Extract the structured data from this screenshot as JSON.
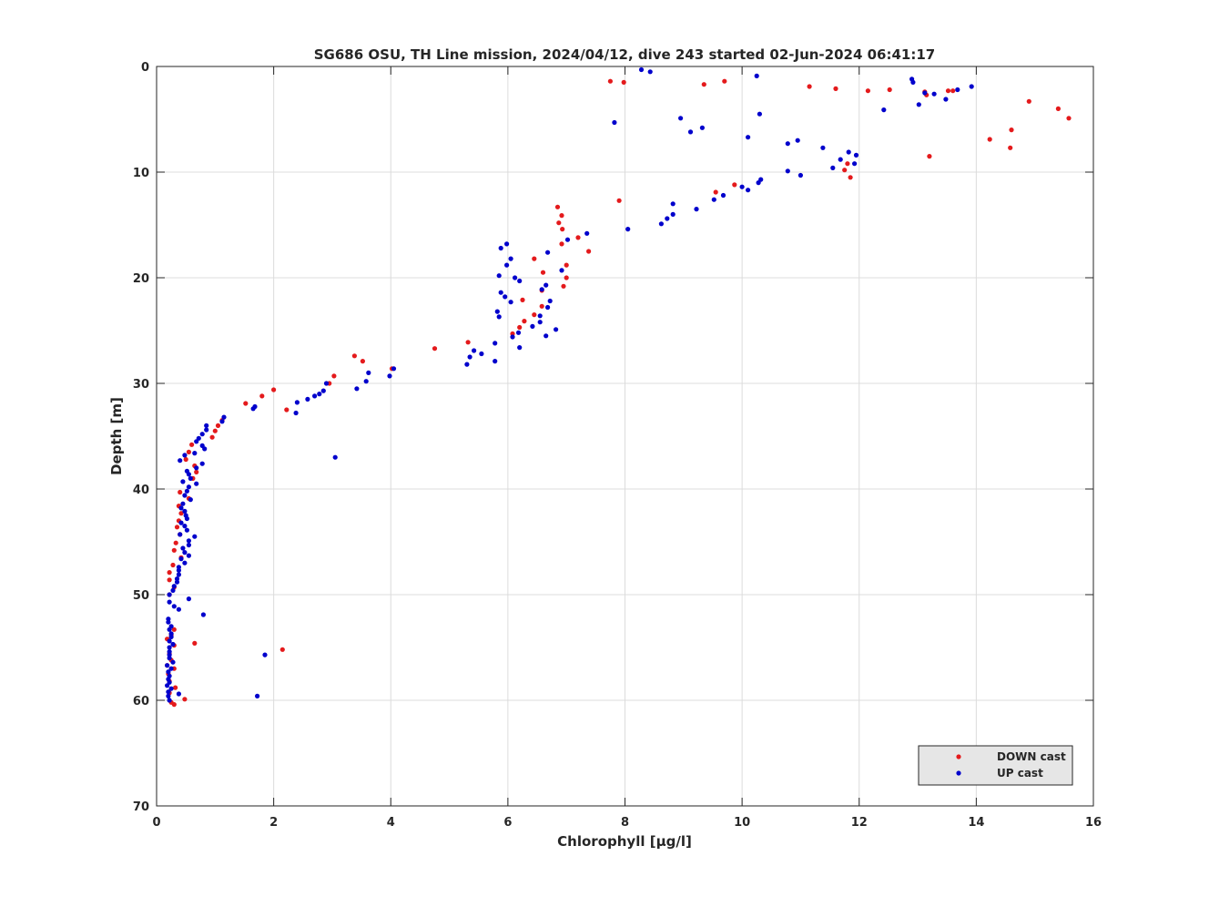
{
  "chart_data": {
    "type": "scatter",
    "title": "SG686 OSU, TH Line mission, 2024/04/12, dive 243 started 02-Jun-2024 06:41:17",
    "xlabel": "Chlorophyll [μg/l]",
    "ylabel": "Depth [m]",
    "xlim": [
      0,
      16
    ],
    "ylim": [
      0,
      70
    ],
    "y_reversed": true,
    "xticks": [
      "0",
      "2",
      "4",
      "6",
      "8",
      "10",
      "12",
      "14",
      "16"
    ],
    "yticks": [
      "0",
      "10",
      "20",
      "30",
      "40",
      "50",
      "60",
      "70"
    ],
    "grid": true,
    "legend_position": "bottom-right",
    "series": [
      {
        "name": "DOWN cast",
        "color": "#e41a1c",
        "points": [
          [
            7.75,
            1.4
          ],
          [
            7.98,
            1.5
          ],
          [
            9.35,
            1.7
          ],
          [
            9.7,
            1.4
          ],
          [
            11.15,
            1.9
          ],
          [
            11.6,
            2.1
          ],
          [
            12.15,
            2.3
          ],
          [
            12.52,
            2.2
          ],
          [
            13.12,
            2.4
          ],
          [
            13.15,
            2.7
          ],
          [
            13.52,
            2.3
          ],
          [
            13.6,
            2.3
          ],
          [
            14.9,
            3.3
          ],
          [
            15.4,
            4.0
          ],
          [
            15.58,
            4.9
          ],
          [
            14.6,
            6.0
          ],
          [
            14.23,
            6.9
          ],
          [
            14.58,
            7.7
          ],
          [
            13.2,
            8.5
          ],
          [
            11.8,
            9.2
          ],
          [
            11.75,
            9.8
          ],
          [
            11.85,
            10.5
          ],
          [
            9.87,
            11.2
          ],
          [
            9.55,
            11.9
          ],
          [
            7.9,
            12.7
          ],
          [
            6.85,
            13.3
          ],
          [
            6.92,
            14.1
          ],
          [
            6.87,
            14.8
          ],
          [
            6.93,
            15.4
          ],
          [
            7.2,
            16.2
          ],
          [
            6.92,
            16.8
          ],
          [
            7.38,
            17.5
          ],
          [
            6.45,
            18.2
          ],
          [
            7.0,
            18.8
          ],
          [
            6.6,
            19.5
          ],
          [
            7.0,
            20.0
          ],
          [
            6.95,
            20.8
          ],
          [
            6.58,
            21.2
          ],
          [
            6.25,
            22.1
          ],
          [
            6.58,
            22.7
          ],
          [
            6.45,
            23.5
          ],
          [
            6.28,
            24.1
          ],
          [
            6.2,
            24.7
          ],
          [
            6.08,
            25.3
          ],
          [
            5.32,
            26.1
          ],
          [
            4.75,
            26.7
          ],
          [
            3.38,
            27.4
          ],
          [
            3.52,
            27.9
          ],
          [
            4.02,
            28.6
          ],
          [
            3.03,
            29.3
          ],
          [
            2.95,
            30.0
          ],
          [
            2.0,
            30.6
          ],
          [
            1.8,
            31.2
          ],
          [
            1.52,
            31.9
          ],
          [
            2.22,
            32.5
          ],
          [
            1.12,
            33.5
          ],
          [
            1.05,
            34.0
          ],
          [
            1.0,
            34.5
          ],
          [
            0.95,
            35.1
          ],
          [
            0.6,
            35.8
          ],
          [
            0.55,
            36.5
          ],
          [
            0.5,
            37.2
          ],
          [
            0.65,
            37.8
          ],
          [
            0.68,
            38.4
          ],
          [
            0.62,
            39.0
          ],
          [
            0.4,
            40.3
          ],
          [
            0.55,
            40.9
          ],
          [
            0.38,
            41.6
          ],
          [
            0.42,
            42.3
          ],
          [
            0.38,
            43.0
          ],
          [
            0.35,
            43.6
          ],
          [
            0.4,
            44.3
          ],
          [
            0.33,
            45.1
          ],
          [
            0.3,
            45.8
          ],
          [
            0.42,
            46.5
          ],
          [
            0.28,
            47.2
          ],
          [
            0.22,
            47.9
          ],
          [
            0.22,
            48.6
          ],
          [
            0.3,
            49.3
          ],
          [
            0.22,
            50.0
          ],
          [
            0.3,
            53.3
          ],
          [
            0.25,
            53.8
          ],
          [
            0.18,
            54.2
          ],
          [
            0.3,
            54.8
          ],
          [
            0.65,
            54.6
          ],
          [
            0.22,
            55.6
          ],
          [
            0.25,
            56.2
          ],
          [
            0.18,
            56.7
          ],
          [
            0.3,
            57.0
          ],
          [
            0.2,
            57.5
          ],
          [
            0.22,
            58.2
          ],
          [
            0.32,
            58.8
          ],
          [
            0.22,
            59.3
          ],
          [
            0.48,
            59.9
          ],
          [
            0.25,
            60.2
          ],
          [
            0.3,
            60.4
          ],
          [
            2.15,
            55.2
          ]
        ]
      },
      {
        "name": "UP cast",
        "color": "#0000cc",
        "points": [
          [
            8.28,
            0.3
          ],
          [
            8.43,
            0.5
          ],
          [
            10.25,
            0.9
          ],
          [
            12.9,
            1.2
          ],
          [
            12.92,
            1.5
          ],
          [
            13.92,
            1.9
          ],
          [
            13.68,
            2.2
          ],
          [
            13.28,
            2.6
          ],
          [
            13.12,
            2.5
          ],
          [
            13.48,
            3.1
          ],
          [
            13.02,
            3.6
          ],
          [
            12.42,
            4.1
          ],
          [
            10.3,
            4.5
          ],
          [
            8.95,
            4.9
          ],
          [
            7.82,
            5.3
          ],
          [
            9.32,
            5.8
          ],
          [
            9.12,
            6.2
          ],
          [
            10.1,
            6.7
          ],
          [
            10.95,
            7.0
          ],
          [
            10.78,
            7.3
          ],
          [
            11.38,
            7.7
          ],
          [
            11.82,
            8.1
          ],
          [
            11.95,
            8.4
          ],
          [
            11.68,
            8.8
          ],
          [
            11.92,
            9.2
          ],
          [
            11.55,
            9.6
          ],
          [
            10.78,
            9.9
          ],
          [
            11.0,
            10.3
          ],
          [
            10.32,
            10.7
          ],
          [
            10.28,
            11.0
          ],
          [
            10.0,
            11.4
          ],
          [
            10.1,
            11.7
          ],
          [
            9.68,
            12.2
          ],
          [
            9.52,
            12.6
          ],
          [
            8.82,
            13.0
          ],
          [
            9.22,
            13.5
          ],
          [
            8.82,
            14.0
          ],
          [
            8.72,
            14.4
          ],
          [
            8.62,
            14.9
          ],
          [
            8.05,
            15.4
          ],
          [
            7.35,
            15.8
          ],
          [
            7.02,
            16.4
          ],
          [
            5.98,
            16.8
          ],
          [
            5.88,
            17.2
          ],
          [
            6.68,
            17.6
          ],
          [
            6.05,
            18.2
          ],
          [
            5.98,
            18.8
          ],
          [
            6.92,
            19.3
          ],
          [
            5.85,
            19.8
          ],
          [
            6.12,
            20.0
          ],
          [
            6.2,
            20.3
          ],
          [
            6.65,
            20.7
          ],
          [
            6.58,
            21.1
          ],
          [
            5.88,
            21.4
          ],
          [
            5.95,
            21.8
          ],
          [
            6.05,
            22.3
          ],
          [
            6.72,
            22.2
          ],
          [
            6.68,
            22.8
          ],
          [
            5.82,
            23.2
          ],
          [
            5.85,
            23.7
          ],
          [
            6.55,
            23.6
          ],
          [
            6.55,
            24.2
          ],
          [
            6.42,
            24.6
          ],
          [
            6.82,
            24.9
          ],
          [
            6.18,
            25.2
          ],
          [
            6.08,
            25.6
          ],
          [
            6.65,
            25.5
          ],
          [
            5.78,
            26.2
          ],
          [
            6.2,
            26.6
          ],
          [
            5.42,
            26.9
          ],
          [
            5.55,
            27.2
          ],
          [
            5.35,
            27.5
          ],
          [
            5.78,
            27.9
          ],
          [
            5.3,
            28.2
          ],
          [
            4.05,
            28.6
          ],
          [
            3.62,
            29.0
          ],
          [
            3.98,
            29.3
          ],
          [
            3.58,
            29.8
          ],
          [
            2.9,
            30.0
          ],
          [
            3.42,
            30.5
          ],
          [
            2.85,
            30.7
          ],
          [
            2.78,
            31.0
          ],
          [
            2.7,
            31.2
          ],
          [
            2.58,
            31.5
          ],
          [
            2.4,
            31.8
          ],
          [
            1.68,
            32.2
          ],
          [
            1.65,
            32.4
          ],
          [
            2.38,
            32.8
          ],
          [
            1.15,
            33.2
          ],
          [
            1.12,
            33.6
          ],
          [
            0.85,
            34.0
          ],
          [
            0.85,
            34.4
          ],
          [
            0.78,
            34.8
          ],
          [
            0.72,
            35.2
          ],
          [
            0.68,
            35.5
          ],
          [
            0.78,
            35.9
          ],
          [
            0.82,
            36.2
          ],
          [
            0.65,
            36.6
          ],
          [
            0.48,
            36.8
          ],
          [
            0.4,
            37.3
          ],
          [
            0.78,
            37.6
          ],
          [
            0.68,
            38.0
          ],
          [
            0.52,
            38.3
          ],
          [
            0.55,
            38.6
          ],
          [
            0.58,
            39.0
          ],
          [
            0.45,
            39.3
          ],
          [
            0.68,
            39.5
          ],
          [
            0.55,
            39.8
          ],
          [
            0.52,
            40.2
          ],
          [
            0.48,
            40.6
          ],
          [
            0.58,
            41.0
          ],
          [
            0.45,
            41.4
          ],
          [
            0.42,
            41.8
          ],
          [
            0.48,
            42.1
          ],
          [
            0.5,
            42.5
          ],
          [
            0.52,
            42.8
          ],
          [
            0.42,
            43.2
          ],
          [
            0.48,
            43.5
          ],
          [
            0.52,
            43.9
          ],
          [
            0.4,
            44.3
          ],
          [
            0.65,
            44.5
          ],
          [
            0.55,
            44.9
          ],
          [
            0.55,
            45.3
          ],
          [
            0.45,
            45.6
          ],
          [
            0.48,
            46.0
          ],
          [
            0.55,
            46.3
          ],
          [
            0.42,
            46.6
          ],
          [
            0.48,
            47.0
          ],
          [
            0.38,
            47.4
          ],
          [
            0.38,
            47.7
          ],
          [
            0.38,
            48.1
          ],
          [
            0.35,
            48.5
          ],
          [
            0.35,
            48.8
          ],
          [
            0.3,
            49.2
          ],
          [
            0.28,
            49.6
          ],
          [
            0.22,
            50.0
          ],
          [
            0.55,
            50.4
          ],
          [
            0.22,
            50.7
          ],
          [
            0.3,
            51.1
          ],
          [
            0.38,
            51.4
          ],
          [
            0.8,
            51.9
          ],
          [
            0.2,
            52.3
          ],
          [
            0.2,
            52.6
          ],
          [
            0.25,
            53.0
          ],
          [
            0.22,
            53.3
          ],
          [
            0.25,
            53.7
          ],
          [
            0.25,
            54.0
          ],
          [
            0.22,
            54.4
          ],
          [
            0.28,
            54.7
          ],
          [
            0.22,
            55.0
          ],
          [
            0.22,
            55.4
          ],
          [
            0.22,
            55.7
          ],
          [
            0.22,
            56.0
          ],
          [
            1.85,
            55.7
          ],
          [
            0.28,
            56.4
          ],
          [
            0.18,
            56.7
          ],
          [
            0.25,
            57.0
          ],
          [
            0.2,
            57.3
          ],
          [
            0.22,
            57.7
          ],
          [
            0.2,
            58.0
          ],
          [
            0.22,
            58.3
          ],
          [
            0.18,
            58.6
          ],
          [
            0.25,
            58.9
          ],
          [
            0.2,
            59.2
          ],
          [
            0.38,
            59.4
          ],
          [
            0.2,
            59.6
          ],
          [
            1.72,
            59.6
          ],
          [
            3.05,
            37.0
          ],
          [
            0.22,
            60.0
          ]
        ]
      }
    ]
  }
}
